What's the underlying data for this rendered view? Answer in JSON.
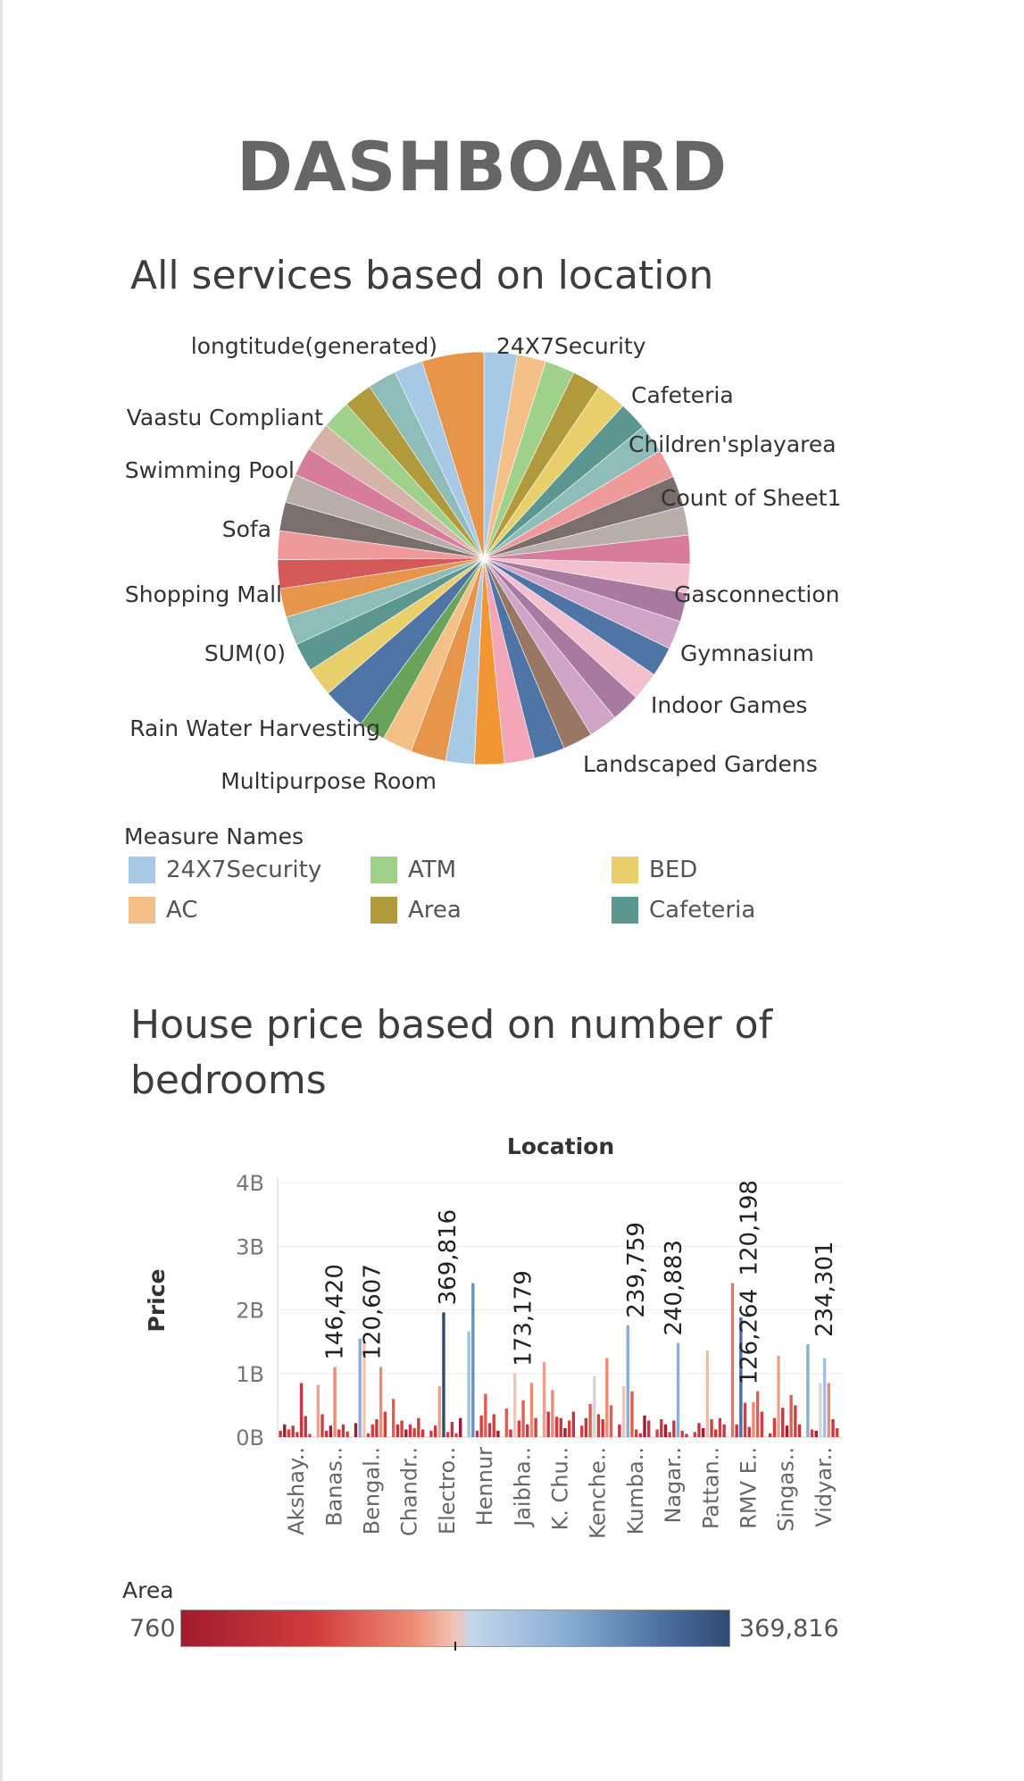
{
  "title": "DASHBOARD",
  "pie_section": {
    "title": "All services based on location"
  },
  "bar_section": {
    "title": "House price based on number of bedrooms"
  },
  "legend": {
    "title": "Measure Names",
    "items": [
      {
        "label": "24X7Security",
        "color": "#a8c9e6"
      },
      {
        "label": "AC",
        "color": "#f5bf88"
      },
      {
        "label": "ATM",
        "color": "#9fd18a"
      },
      {
        "label": "Area",
        "color": "#b19a3c"
      },
      {
        "label": "BED",
        "color": "#e9cf6c"
      },
      {
        "label": "Cafeteria",
        "color": "#5b9690"
      }
    ]
  },
  "colorbar": {
    "title": "Area",
    "min_label": "760",
    "max_label": "369,816"
  },
  "chart_data": [
    {
      "type": "pie",
      "title": "All services based on location",
      "slice_colors": [
        "#a8c9e6",
        "#f5bf88",
        "#9fd18a",
        "#b19a3c",
        "#e9cf6c",
        "#5b9690",
        "#8ebcb8",
        "#ef9a9a",
        "#7a6f6c",
        "#b7aea9",
        "#d77c9a",
        "#f2c0cf",
        "#a87aa1",
        "#cfa4c7",
        "#4f74a6",
        "#f2c0cf",
        "#a87aa1",
        "#cfa4c7",
        "#9a7664",
        "#4f74a6",
        "#f2a6b8",
        "#f29635",
        "#a8c9e6",
        "#e6954a",
        "#f5bf88",
        "#6aa35a",
        "#4f74a6",
        "#e9cf6c",
        "#5b9690",
        "#8ebcb8",
        "#e6954a",
        "#d45a5a",
        "#ef9a9a",
        "#7a6f6c",
        "#b7aea9",
        "#d77c9a",
        "#d6b3a8",
        "#9fd18a",
        "#b19a3c",
        "#8ebcb8",
        "#a8c9e6",
        "#e6954a"
      ],
      "slice_weights": [
        3,
        2.6,
        2.7,
        2.6,
        2.7,
        2.6,
        2.6,
        2.6,
        2.8,
        2.6,
        2.6,
        2.6,
        2.6,
        2.6,
        2.7,
        2.6,
        2.6,
        2.6,
        2.7,
        2.8,
        2.7,
        2.7,
        2.6,
        3.2,
        2.7,
        2.4,
        4.0,
        2.6,
        2.6,
        2.6,
        2.6,
        2.6,
        2.6,
        2.6,
        2.6,
        2.6,
        2.6,
        2.6,
        2.6,
        2.6,
        2.6,
        5.6
      ],
      "labels": [
        "longtitude(generated)",
        "24X7Security",
        "Cafeteria",
        "Children'splayarea",
        "Count of Sheet1",
        "Vaastu Compliant",
        "Swimming Pool",
        "Sofa",
        "Shopping Mall",
        "Gasconnection",
        "SUM(0)",
        "Gymnasium",
        "Indoor Games",
        "Rain Water Harvesting",
        "Landscaped Gardens",
        "Multipurpose Room"
      ]
    },
    {
      "type": "bar",
      "title": "House price based on number of bedrooms",
      "xlabel": "Location",
      "ylabel": "Price",
      "ylim": [
        0,
        4000000000
      ],
      "yticks": [
        "0B",
        "1B",
        "2B",
        "3B",
        "4B"
      ],
      "grid": true,
      "categories": [
        "Akshay..",
        "Banas..",
        "Bengal..",
        "Chandr..",
        "Electro..",
        "Hennur",
        "Jaibha..",
        "K. Chu..",
        "Kenche..",
        "Kumba..",
        "Nagar..",
        "Pattan..",
        "RMV E..",
        "Singas..",
        "Vidyar.."
      ],
      "annotations": [
        {
          "category_index": 1,
          "value": 1100000000,
          "label": "146,420"
        },
        {
          "category_index": 2,
          "value": 1100000000,
          "label": "120,607"
        },
        {
          "category_index": 4,
          "value": 1960000000,
          "label": "369,816"
        },
        {
          "category_index": 6,
          "value": 1000000000,
          "label": "173,179"
        },
        {
          "category_index": 9,
          "value": 1760000000,
          "label": "239,759"
        },
        {
          "category_index": 10,
          "value": 1480000000,
          "label": "240,883"
        },
        {
          "category_index": 12,
          "value": 2420000000,
          "label": "120,198"
        },
        {
          "category_index": 12,
          "value": 710000000,
          "label": "126,264"
        },
        {
          "category_index": 14,
          "value": 1460000000,
          "label": "234,301"
        }
      ],
      "bars": [
        [
          {
            "v": 0.1,
            "c": "#c8343f"
          },
          {
            "v": 0.2,
            "c": "#a01b2e"
          },
          {
            "v": 0.12,
            "c": "#d33e3e"
          },
          {
            "v": 0.18,
            "c": "#c8343f"
          },
          {
            "v": 0.08,
            "c": "#d33e3e"
          },
          {
            "v": 0.85,
            "c": "#c8343f"
          },
          {
            "v": 0.33,
            "c": "#c8343f"
          },
          {
            "v": 0.05,
            "c": "#d33e3e"
          }
        ],
        [
          {
            "v": 0.82,
            "c": "#f0a08a"
          },
          {
            "v": 0.36,
            "c": "#d33e3e"
          },
          {
            "v": 0.1,
            "c": "#c8343f"
          },
          {
            "v": 0.18,
            "c": "#a01b2e"
          },
          {
            "v": 1.1,
            "c": "#ec8a72"
          },
          {
            "v": 0.12,
            "c": "#d33e3e"
          },
          {
            "v": 0.2,
            "c": "#c8343f"
          },
          {
            "v": 0.09,
            "c": "#d33e3e"
          }
        ],
        [
          {
            "v": 0.22,
            "c": "#a01b2e"
          },
          {
            "v": 1.55,
            "c": "#8aaed4"
          },
          {
            "v": 1.5,
            "c": "#f2c4b5"
          },
          {
            "v": 0.06,
            "c": "#d33e3e"
          },
          {
            "v": 0.2,
            "c": "#d33e3e"
          },
          {
            "v": 0.28,
            "c": "#c8343f"
          },
          {
            "v": 1.1,
            "c": "#ec8a72"
          },
          {
            "v": 0.4,
            "c": "#d33e3e"
          }
        ],
        [
          {
            "v": 0.6,
            "c": "#e05d50"
          },
          {
            "v": 0.2,
            "c": "#c8343f"
          },
          {
            "v": 0.26,
            "c": "#d33e3e"
          },
          {
            "v": 0.12,
            "c": "#a01b2e"
          },
          {
            "v": 0.2,
            "c": "#c8343f"
          },
          {
            "v": 0.14,
            "c": "#d33e3e"
          },
          {
            "v": 0.3,
            "c": "#d33e3e"
          },
          {
            "v": 0.12,
            "c": "#c8343f"
          }
        ],
        [
          {
            "v": 0.1,
            "c": "#d33e3e"
          },
          {
            "v": 0.18,
            "c": "#c8343f"
          },
          {
            "v": 0.8,
            "c": "#f0a08a"
          },
          {
            "v": 1.96,
            "c": "#2f4a73"
          },
          {
            "v": 0.08,
            "c": "#d33e3e"
          },
          {
            "v": 0.24,
            "c": "#c8343f"
          },
          {
            "v": 0.06,
            "c": "#d33e3e"
          },
          {
            "v": 0.3,
            "c": "#a01b2e"
          }
        ],
        [
          {
            "v": 1.66,
            "c": "#a2c0e0"
          },
          {
            "v": 2.42,
            "c": "#6b8fbd"
          },
          {
            "v": 0.1,
            "c": "#c8343f"
          },
          {
            "v": 0.34,
            "c": "#d33e3e"
          },
          {
            "v": 0.68,
            "c": "#e05d50"
          },
          {
            "v": 0.22,
            "c": "#c8343f"
          },
          {
            "v": 0.36,
            "c": "#d33e3e"
          },
          {
            "v": 0.1,
            "c": "#a01b2e"
          }
        ],
        [
          {
            "v": 0.45,
            "c": "#e05d50"
          },
          {
            "v": 0.12,
            "c": "#c8343f"
          },
          {
            "v": 1.0,
            "c": "#f2c4b5"
          },
          {
            "v": 0.26,
            "c": "#d33e3e"
          },
          {
            "v": 0.58,
            "c": "#e05d50"
          },
          {
            "v": 0.2,
            "c": "#c8343f"
          },
          {
            "v": 0.85,
            "c": "#ec8a72"
          },
          {
            "v": 0.3,
            "c": "#d33e3e"
          }
        ],
        [
          {
            "v": 1.18,
            "c": "#f0a08a"
          },
          {
            "v": 0.4,
            "c": "#c8343f"
          },
          {
            "v": 0.74,
            "c": "#ec8a72"
          },
          {
            "v": 0.32,
            "c": "#d33e3e"
          },
          {
            "v": 0.3,
            "c": "#c8343f"
          },
          {
            "v": 0.14,
            "c": "#a01b2e"
          },
          {
            "v": 0.26,
            "c": "#d33e3e"
          },
          {
            "v": 0.4,
            "c": "#c8343f"
          }
        ],
        [
          {
            "v": 0.18,
            "c": "#d33e3e"
          },
          {
            "v": 0.3,
            "c": "#c8343f"
          },
          {
            "v": 0.52,
            "c": "#e05d50"
          },
          {
            "v": 0.96,
            "c": "#d6d6d6"
          },
          {
            "v": 0.36,
            "c": "#d33e3e"
          },
          {
            "v": 0.28,
            "c": "#c8343f"
          },
          {
            "v": 1.24,
            "c": "#ec8a72"
          },
          {
            "v": 0.5,
            "c": "#e05d50"
          }
        ],
        [
          {
            "v": 0.2,
            "c": "#c8343f"
          },
          {
            "v": 0.8,
            "c": "#f2c4b5"
          },
          {
            "v": 1.76,
            "c": "#8aaed4"
          },
          {
            "v": 0.72,
            "c": "#e05d50"
          },
          {
            "v": 0.12,
            "c": "#d33e3e"
          },
          {
            "v": 0.06,
            "c": "#c8343f"
          },
          {
            "v": 0.34,
            "c": "#a01b2e"
          },
          {
            "v": 0.26,
            "c": "#c8343f"
          }
        ],
        [
          {
            "v": 0.12,
            "c": "#d33e3e"
          },
          {
            "v": 0.28,
            "c": "#c8343f"
          },
          {
            "v": 0.2,
            "c": "#a01b2e"
          },
          {
            "v": 0.08,
            "c": "#d33e3e"
          },
          {
            "v": 0.26,
            "c": "#c8343f"
          },
          {
            "v": 1.48,
            "c": "#8aaed4"
          },
          {
            "v": 0.1,
            "c": "#d33e3e"
          },
          {
            "v": 0.05,
            "c": "#c8343f"
          }
        ],
        [
          {
            "v": 0.08,
            "c": "#d33e3e"
          },
          {
            "v": 0.22,
            "c": "#c8343f"
          },
          {
            "v": 0.14,
            "c": "#a01b2e"
          },
          {
            "v": 1.36,
            "c": "#f2b9a6"
          },
          {
            "v": 0.28,
            "c": "#d33e3e"
          },
          {
            "v": 0.12,
            "c": "#c8343f"
          },
          {
            "v": 0.3,
            "c": "#d33e3e"
          },
          {
            "v": 0.2,
            "c": "#c8343f"
          }
        ],
        [
          {
            "v": 2.42,
            "c": "#e67565"
          },
          {
            "v": 0.2,
            "c": "#c8343f"
          },
          {
            "v": 1.88,
            "c": "#4c6f9f"
          },
          {
            "v": 0.54,
            "c": "#d33e3e"
          },
          {
            "v": 0.16,
            "c": "#c8343f"
          },
          {
            "v": 0.55,
            "c": "#ec8a72"
          },
          {
            "v": 0.72,
            "c": "#e05d50"
          },
          {
            "v": 0.4,
            "c": "#d33e3e"
          }
        ],
        [
          {
            "v": 0.06,
            "c": "#c8343f"
          },
          {
            "v": 0.3,
            "c": "#d33e3e"
          },
          {
            "v": 1.28,
            "c": "#f0a08a"
          },
          {
            "v": 0.46,
            "c": "#c8343f"
          },
          {
            "v": 0.18,
            "c": "#a01b2e"
          },
          {
            "v": 0.66,
            "c": "#e05d50"
          },
          {
            "v": 0.5,
            "c": "#d33e3e"
          },
          {
            "v": 0.2,
            "c": "#c8343f"
          }
        ],
        [
          {
            "v": 1.46,
            "c": "#8aaed4"
          },
          {
            "v": 0.12,
            "c": "#d33e3e"
          },
          {
            "v": 0.1,
            "c": "#a01b2e"
          },
          {
            "v": 0.85,
            "c": "#d6d6d6"
          },
          {
            "v": 1.24,
            "c": "#a2c0e0"
          },
          {
            "v": 0.85,
            "c": "#ec8a72"
          },
          {
            "v": 0.28,
            "c": "#c8343f"
          },
          {
            "v": 0.14,
            "c": "#d33e3e"
          }
        ]
      ]
    }
  ]
}
